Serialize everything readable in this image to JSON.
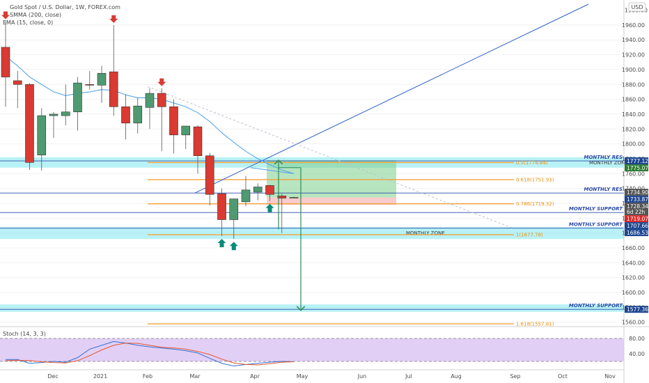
{
  "header": {
    "symbol_title": "Gold Spot / U.S. Dollar, 1W, FOREX.com",
    "indicator_1": "SMMA (200, close)",
    "indicator_2": "EMA (15, close, 0)",
    "currency_button": "USD",
    "stoch_title": "Stoch (14, 3, 3)"
  },
  "colors": {
    "up": "#4f9a70",
    "down": "#d93a32",
    "zone": "#7fe7ee",
    "fib": "#f3a23a",
    "horizontal": "#2b4aa8",
    "ema": "#5aa6e8",
    "trend": "#2b5fc8",
    "stoch_bg": "#e2cff6",
    "badge_blue": "#1d4690",
    "badge_red": "#d72a2a",
    "badge_gray": "#555555",
    "badge_green": "#2e7d32",
    "arrow_green": "#2e8b57",
    "arrow_down": "#d93a32",
    "marker_up": "#0b8a7a"
  },
  "chart_data": {
    "type": "candlestick",
    "timeframe": "1W",
    "y_ticks": [
      1960,
      1940,
      1920,
      1900,
      1880,
      1860,
      1840,
      1820,
      1800,
      1780,
      1760,
      1740,
      1720,
      1700,
      1680,
      1660,
      1640,
      1620,
      1600,
      1580,
      1560
    ],
    "y_axis_top_label": "1980.00",
    "ylim": [
      1556,
      1988
    ],
    "x_ticks": [
      "Dec",
      "2021",
      "Feb",
      "Mar",
      "Apr",
      "May",
      "Jun",
      "Jul",
      "Aug",
      "Sep",
      "Oct",
      "Nov"
    ],
    "candles": [
      {
        "o": 1930,
        "h": 1965,
        "l": 1850,
        "c": 1890
      },
      {
        "o": 1885,
        "h": 1898,
        "l": 1848,
        "c": 1880
      },
      {
        "o": 1880,
        "h": 1882,
        "l": 1765,
        "c": 1775
      },
      {
        "o": 1785,
        "h": 1848,
        "l": 1764,
        "c": 1838
      },
      {
        "o": 1838,
        "h": 1843,
        "l": 1808,
        "c": 1840
      },
      {
        "o": 1838,
        "h": 1880,
        "l": 1825,
        "c": 1843
      },
      {
        "o": 1843,
        "h": 1890,
        "l": 1818,
        "c": 1882
      },
      {
        "o": 1880,
        "h": 1898,
        "l": 1873,
        "c": 1879
      },
      {
        "o": 1879,
        "h": 1905,
        "l": 1855,
        "c": 1895
      },
      {
        "o": 1897,
        "h": 1960,
        "l": 1838,
        "c": 1850
      },
      {
        "o": 1850,
        "h": 1866,
        "l": 1806,
        "c": 1828
      },
      {
        "o": 1828,
        "h": 1862,
        "l": 1814,
        "c": 1851
      },
      {
        "o": 1849,
        "h": 1875,
        "l": 1820,
        "c": 1868
      },
      {
        "o": 1868,
        "h": 1875,
        "l": 1790,
        "c": 1850
      },
      {
        "o": 1850,
        "h": 1860,
        "l": 1787,
        "c": 1812
      },
      {
        "o": 1812,
        "h": 1822,
        "l": 1793,
        "c": 1824
      },
      {
        "o": 1823,
        "h": 1825,
        "l": 1760,
        "c": 1784
      },
      {
        "o": 1784,
        "h": 1788,
        "l": 1717,
        "c": 1732
      },
      {
        "o": 1733,
        "h": 1740,
        "l": 1676,
        "c": 1698
      },
      {
        "o": 1698,
        "h": 1723,
        "l": 1672,
        "c": 1726
      },
      {
        "o": 1722,
        "h": 1757,
        "l": 1716,
        "c": 1738
      },
      {
        "o": 1735,
        "h": 1747,
        "l": 1724,
        "c": 1742
      },
      {
        "o": 1744,
        "h": 1745,
        "l": 1723,
        "c": 1732
      },
      {
        "o": 1730,
        "h": 1733,
        "l": 1680,
        "c": 1727
      },
      {
        "o": 1728,
        "h": 1729,
        "l": 1727,
        "c": 1728
      }
    ],
    "ema": [
      1918,
      1905,
      1890,
      1880,
      1870,
      1865,
      1868,
      1870,
      1873,
      1872,
      1866,
      1862,
      1862,
      1860,
      1855,
      1850,
      1842,
      1830,
      1815,
      1802,
      1790,
      1780,
      1772,
      1765,
      1760
    ],
    "zones": [
      {
        "from": 1768,
        "to": 1782,
        "label": "MONTHLY ZONE"
      },
      {
        "from": 1672,
        "to": 1688,
        "label": "MONTHLY ZONE"
      },
      {
        "from": 1574,
        "to": 1584,
        "label": ""
      }
    ],
    "fib_levels": [
      {
        "level": 1774.84,
        "label": "0.5(1774.84)"
      },
      {
        "level": 1751.93,
        "label": "0.618(1751.93)"
      },
      {
        "level": 1719.32,
        "label": "0.786(1719.32)"
      },
      {
        "level": 1677.78,
        "label": "1(1677.78)"
      },
      {
        "level": 1557.81,
        "label": "1.618(1557.81)"
      }
    ],
    "horizontal_levels": [
      {
        "level": 1777.12,
        "label": "MONTHLY RES"
      },
      {
        "level": 1733.87,
        "label": "MONTHLY RES"
      },
      {
        "level": 1707.66,
        "label": "MONTHLY SUPPORT"
      },
      {
        "level": 1686.53,
        "label": "MONTHLY SUPPORT"
      },
      {
        "level": 1577.36,
        "label": "MONTHLY SUPPORT"
      }
    ],
    "price_badges": [
      {
        "value": "1777.12",
        "color": "badge_blue"
      },
      {
        "value": "1775.07",
        "color": "badge_green"
      },
      {
        "value": "1734.90",
        "color": "badge_gray"
      },
      {
        "value": "1733.87",
        "color": "badge_blue"
      },
      {
        "value": "1728.34",
        "color": "badge_gray",
        "sub": "6d 22h"
      },
      {
        "value": "1719.07",
        "color": "badge_red"
      },
      {
        "value": "1707.66",
        "color": "badge_blue"
      },
      {
        "value": "1686.53",
        "color": "badge_blue"
      },
      {
        "value": "1577.36",
        "color": "badge_blue"
      }
    ],
    "position": {
      "entry": 1728,
      "target": 1778,
      "stop": 1718
    },
    "projection": {
      "up_from": 1685,
      "up_to": 1778,
      "down_from": 1768,
      "down_to": 1576
    },
    "trend_line": {
      "from": 1734,
      "to": 1988
    },
    "dashed_trend": {
      "from": 1877,
      "to": 1686
    },
    "signals_down": [
      0,
      9,
      13
    ],
    "signals_up": [
      18,
      19,
      22
    ],
    "stochastic": {
      "y_ticks": [
        "80.00",
        "40.00"
      ],
      "ylim": [
        0,
        100
      ],
      "k": [
        25,
        25,
        15,
        17,
        20,
        18,
        30,
        52,
        62,
        72,
        68,
        62,
        58,
        55,
        52,
        48,
        42,
        28,
        15,
        8,
        12,
        15,
        18,
        20,
        19
      ],
      "d": [
        22,
        23,
        22,
        19,
        17,
        16,
        22,
        35,
        50,
        62,
        68,
        67,
        62,
        57,
        55,
        52,
        46,
        38,
        26,
        16,
        12,
        11,
        14,
        18,
        19
      ]
    }
  }
}
